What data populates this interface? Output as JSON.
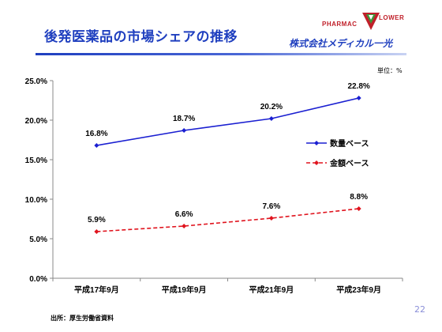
{
  "slide": {
    "title": "後発医薬品の市場シェアの推移",
    "unit_label": "単位：%",
    "source": "出所：厚生労働省資料",
    "page_number": "22"
  },
  "logo": {
    "word_left": "PHARMAC",
    "word_right": "LOWER",
    "company": "株式会社メディカル一光",
    "colors": {
      "red": "#c0202a",
      "green": "#3a9a3a",
      "blue": "#1f3fbf"
    }
  },
  "chart_data": {
    "type": "line",
    "categories": [
      "平成17年9月",
      "平成19年9月",
      "平成21年9月",
      "平成23年9月"
    ],
    "ylim": [
      0,
      25
    ],
    "ytick_labels": [
      "0.0%",
      "5.0%",
      "10.0%",
      "15.0%",
      "20.0%",
      "25.0%"
    ],
    "yticks": [
      0,
      5,
      10,
      15,
      20,
      25
    ],
    "grid": false,
    "legend_placement": "right",
    "series": [
      {
        "name": "数量ベース",
        "values": [
          16.8,
          18.7,
          20.2,
          22.8
        ],
        "labels": [
          "16.8%",
          "18.7%",
          "20.2%",
          "22.8%"
        ],
        "color": "#1a1fd1",
        "style": "solid"
      },
      {
        "name": "金額ベース",
        "values": [
          5.9,
          6.6,
          7.6,
          8.8
        ],
        "labels": [
          "5.9%",
          "6.6%",
          "7.6%",
          "8.8%"
        ],
        "color": "#e0141e",
        "style": "dashed"
      }
    ]
  }
}
